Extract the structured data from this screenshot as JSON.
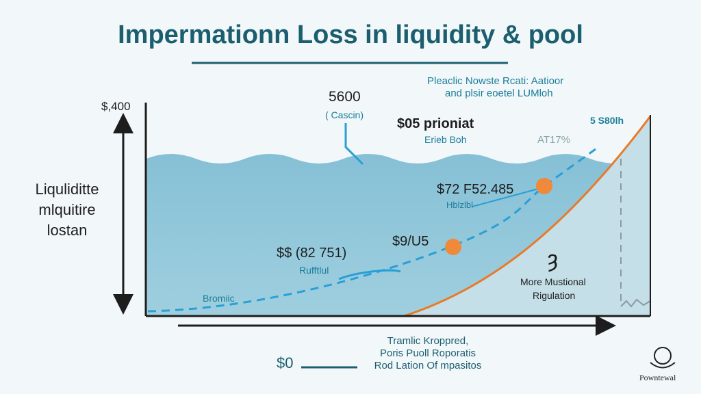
{
  "title": "Impermationn Loss in liquidity & pool",
  "note_top_right": {
    "line1": "Pleaclic Nowste Rcati: Aatioor",
    "line2": "and plsir eoetel LUMloh"
  },
  "y_axis": {
    "top_label": "$,400",
    "label_lines": [
      "Liquliditte",
      "mlquitire",
      "lostan"
    ]
  },
  "annotations": {
    "value_5600": "5600",
    "cascin": "( Cascin)",
    "prioniat": "$05 prioniat",
    "erieb_boh": "Erieb Boh",
    "right_value": "5 S80lh",
    "percent": "AT17%",
    "point1_value": "$72 F52.485",
    "point1_label": "Hblzlbl",
    "point2_value": "$9/U5",
    "point3_value": "$$ (82 751)",
    "point3_label": "Rufftlul",
    "bromiic": "Bromiic",
    "region_glyph": "ȝ",
    "region_line1": "More Mustional",
    "region_line2": "Rigulation"
  },
  "bottom": {
    "zero_label": "$0",
    "caption_lines": [
      "Tramlic Kroppred,",
      "Poris Puoll Roporatis",
      "Rod Lation Of mpasitos"
    ]
  },
  "logo": {
    "text": "Powntewal"
  },
  "colors": {
    "title": "#1b5f6f",
    "water": "#8fc5d8",
    "orange": "#e87a2a",
    "dashed_blue": "#2a9fd6",
    "points": "#f08a3a"
  }
}
